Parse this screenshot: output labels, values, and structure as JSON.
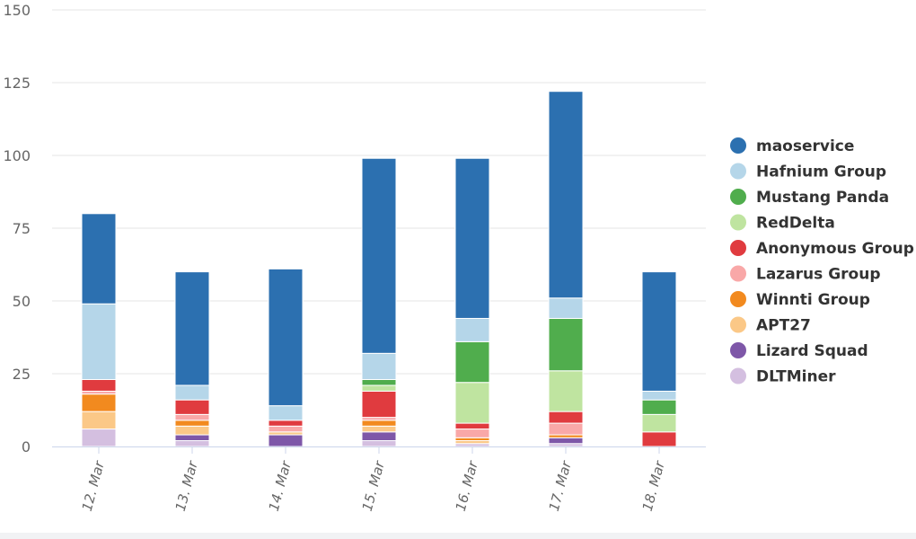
{
  "chart_data": {
    "type": "bar",
    "stacked": true,
    "title": "",
    "xlabel": "",
    "ylabel": "",
    "ylim": [
      0,
      150
    ],
    "y_ticks": [
      0,
      25,
      50,
      75,
      100,
      125,
      150
    ],
    "grid": "horizontal",
    "legend_position": "right",
    "categories": [
      "12. Mar",
      "13. Mar",
      "14. Mar",
      "15. Mar",
      "16. Mar",
      "17. Mar",
      "18. Mar"
    ],
    "series": [
      {
        "name": "DLTMiner",
        "color": "#d4bfe0",
        "values": [
          6,
          2,
          0,
          2,
          1,
          1,
          0
        ]
      },
      {
        "name": "Lizard Squad",
        "color": "#7e57a8",
        "values": [
          0,
          2,
          4,
          3,
          0,
          2,
          0
        ]
      },
      {
        "name": "APT27",
        "color": "#fbc887",
        "values": [
          6,
          3,
          1,
          2,
          1,
          0,
          0
        ]
      },
      {
        "name": "Winnti Group",
        "color": "#f28a1f",
        "values": [
          6,
          2,
          0,
          2,
          1,
          1,
          0
        ]
      },
      {
        "name": "Lazarus Group",
        "color": "#f9a8a8",
        "values": [
          1,
          2,
          2,
          1,
          3,
          4,
          0
        ]
      },
      {
        "name": "Anonymous Group",
        "color": "#e03b3f",
        "values": [
          4,
          5,
          2,
          9,
          2,
          4,
          5
        ]
      },
      {
        "name": "RedDelta",
        "color": "#bfe4a0",
        "values": [
          0,
          0,
          0,
          2,
          14,
          14,
          6
        ]
      },
      {
        "name": "Mustang Panda",
        "color": "#50ad4d",
        "values": [
          0,
          0,
          0,
          2,
          14,
          18,
          5
        ]
      },
      {
        "name": "Hafnium Group",
        "color": "#b5d6e9",
        "values": [
          26,
          5,
          5,
          9,
          8,
          7,
          3
        ]
      },
      {
        "name": "maoservice",
        "color": "#2c70b0",
        "values": [
          31,
          39,
          47,
          67,
          55,
          71,
          41
        ]
      }
    ],
    "legend_order": [
      "maoservice",
      "Hafnium Group",
      "Mustang Panda",
      "RedDelta",
      "Anonymous Group",
      "Lazarus Group",
      "Winnti Group",
      "APT27",
      "Lizard Squad",
      "DLTMiner"
    ]
  }
}
